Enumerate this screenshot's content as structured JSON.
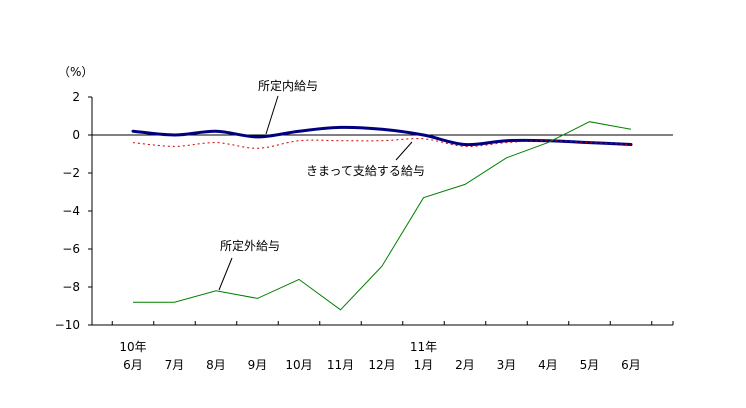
{
  "chart_data": {
    "type": "line",
    "unit_label": "（%）",
    "ylim": [
      -10,
      2
    ],
    "yticks": [
      2,
      0,
      -2,
      -4,
      -6,
      -8,
      -10
    ],
    "categories": [
      "6月",
      "7月",
      "8月",
      "9月",
      "10月",
      "11月",
      "12月",
      "1月",
      "2月",
      "3月",
      "4月",
      "5月",
      "6月"
    ],
    "year_labels": [
      {
        "index": 0,
        "text": "10年"
      },
      {
        "index": 7,
        "text": "11年"
      }
    ],
    "series": [
      {
        "name": "所定内給与",
        "color": "#000080",
        "style": "solid-thick",
        "values": [
          0.2,
          0.0,
          0.2,
          -0.1,
          0.2,
          0.4,
          0.3,
          0.0,
          -0.5,
          -0.3,
          -0.3,
          -0.4,
          -0.5
        ]
      },
      {
        "name": "きまって支給する給与",
        "color": "#cc0000",
        "style": "dotted",
        "values": [
          -0.4,
          -0.6,
          -0.4,
          -0.7,
          -0.3,
          -0.3,
          -0.3,
          -0.2,
          -0.6,
          -0.4,
          -0.3,
          -0.4,
          -0.5
        ]
      },
      {
        "name": "所定外給与",
        "color": "#008000",
        "style": "solid-thin",
        "values": [
          -8.8,
          -8.8,
          -8.2,
          -8.6,
          -7.6,
          -9.2,
          -6.9,
          -3.3,
          -2.6,
          -1.2,
          -0.4,
          0.7,
          0.3
        ]
      }
    ],
    "annotations": [
      {
        "series": 0,
        "text": "所定内給与"
      },
      {
        "series": 1,
        "text": "きまって支給する給与"
      },
      {
        "series": 2,
        "text": "所定外給与"
      }
    ],
    "grid": false,
    "legend": "none"
  }
}
